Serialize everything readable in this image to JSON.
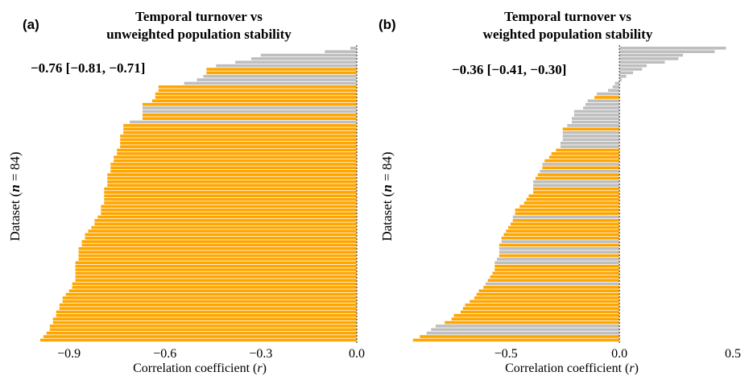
{
  "colors": {
    "significant": "#FFA500",
    "nonsignificant": "#BEBEBE",
    "text": "#000000",
    "zero_line": "#555555"
  },
  "y_label": {
    "prefix": "Dataset (",
    "n_symbol": "n",
    "suffix": " = 84)"
  },
  "x_label": {
    "prefix": "Correlation coefficient (",
    "r_symbol": "r",
    "suffix": ")"
  },
  "chart_data": [
    {
      "type": "bar",
      "orientation": "horizontal",
      "panel_label": "(a)",
      "title": [
        "Temporal turnover vs",
        "unweighted population stability"
      ],
      "annotation": "−0.76 [−0.81, −0.71]",
      "xlabel": "Correlation coefficient (r)",
      "ylabel": "Dataset (n = 84)",
      "xlim": [
        -1.02,
        0.0
      ],
      "xticks": [
        -0.9,
        -0.6,
        -0.3,
        0.0
      ],
      "xtick_labels": [
        "−0.9",
        "−0.6",
        "−0.3",
        "0.0"
      ],
      "legend": "none",
      "values": [
        -0.02,
        -0.1,
        -0.3,
        -0.33,
        -0.38,
        -0.44,
        -0.47,
        -0.47,
        -0.48,
        -0.5,
        -0.54,
        -0.62,
        -0.62,
        -0.63,
        -0.63,
        -0.64,
        -0.67,
        -0.67,
        -0.67,
        -0.67,
        -0.67,
        -0.71,
        -0.73,
        -0.73,
        -0.73,
        -0.74,
        -0.74,
        -0.74,
        -0.74,
        -0.75,
        -0.75,
        -0.76,
        -0.76,
        -0.77,
        -0.77,
        -0.77,
        -0.78,
        -0.78,
        -0.78,
        -0.78,
        -0.79,
        -0.79,
        -0.79,
        -0.79,
        -0.79,
        -0.8,
        -0.8,
        -0.8,
        -0.81,
        -0.82,
        -0.82,
        -0.83,
        -0.84,
        -0.85,
        -0.85,
        -0.86,
        -0.86,
        -0.87,
        -0.87,
        -0.87,
        -0.87,
        -0.88,
        -0.88,
        -0.88,
        -0.88,
        -0.88,
        -0.88,
        -0.89,
        -0.89,
        -0.9,
        -0.91,
        -0.92,
        -0.92,
        -0.93,
        -0.93,
        -0.94,
        -0.94,
        -0.95,
        -0.95,
        -0.96,
        -0.96,
        -0.97,
        -0.98,
        -0.99
      ],
      "significant": [
        false,
        false,
        false,
        false,
        false,
        false,
        true,
        true,
        false,
        false,
        false,
        true,
        true,
        true,
        true,
        true,
        true,
        false,
        false,
        true,
        true,
        false,
        true,
        true,
        true,
        true,
        true,
        true,
        true,
        true,
        true,
        true,
        true,
        true,
        true,
        true,
        true,
        true,
        true,
        true,
        true,
        true,
        true,
        true,
        true,
        true,
        true,
        true,
        true,
        true,
        true,
        true,
        true,
        true,
        true,
        true,
        true,
        true,
        true,
        true,
        true,
        true,
        true,
        true,
        true,
        true,
        true,
        true,
        true,
        true,
        true,
        true,
        true,
        true,
        true,
        true,
        true,
        true,
        true,
        true,
        true,
        true,
        true,
        true
      ]
    },
    {
      "type": "bar",
      "orientation": "horizontal",
      "panel_label": "(b)",
      "title": [
        "Temporal turnover vs",
        "weighted population stability"
      ],
      "annotation": "−0.36 [−0.41, −0.30]",
      "xlabel": "Correlation coefficient (r)",
      "ylabel": "Dataset (n = 84)",
      "xlim": [
        -0.92,
        0.5
      ],
      "xticks": [
        -0.5,
        0.0,
        0.5
      ],
      "xtick_labels": [
        "−0.5",
        "0.0",
        "0.5"
      ],
      "legend": "none",
      "values": [
        0.47,
        0.42,
        0.28,
        0.26,
        0.2,
        0.12,
        0.1,
        0.06,
        0.03,
        0.01,
        -0.02,
        -0.03,
        -0.05,
        -0.1,
        -0.11,
        -0.14,
        -0.15,
        -0.16,
        -0.2,
        -0.2,
        -0.21,
        -0.21,
        -0.23,
        -0.25,
        -0.25,
        -0.25,
        -0.25,
        -0.26,
        -0.26,
        -0.28,
        -0.3,
        -0.31,
        -0.33,
        -0.34,
        -0.34,
        -0.35,
        -0.36,
        -0.37,
        -0.38,
        -0.38,
        -0.38,
        -0.38,
        -0.4,
        -0.41,
        -0.42,
        -0.44,
        -0.46,
        -0.46,
        -0.47,
        -0.47,
        -0.48,
        -0.49,
        -0.5,
        -0.51,
        -0.52,
        -0.52,
        -0.53,
        -0.53,
        -0.53,
        -0.53,
        -0.54,
        -0.55,
        -0.55,
        -0.55,
        -0.56,
        -0.57,
        -0.58,
        -0.59,
        -0.6,
        -0.62,
        -0.63,
        -0.64,
        -0.66,
        -0.68,
        -0.69,
        -0.7,
        -0.73,
        -0.74,
        -0.77,
        -0.81,
        -0.83,
        -0.85,
        -0.88,
        -0.91
      ],
      "significant": [
        false,
        false,
        false,
        false,
        false,
        false,
        false,
        false,
        false,
        false,
        false,
        false,
        false,
        false,
        true,
        false,
        false,
        false,
        false,
        false,
        false,
        false,
        false,
        true,
        false,
        false,
        false,
        false,
        false,
        true,
        true,
        true,
        true,
        false,
        true,
        false,
        true,
        true,
        false,
        false,
        true,
        true,
        true,
        true,
        true,
        true,
        true,
        true,
        false,
        true,
        true,
        true,
        true,
        true,
        true,
        false,
        true,
        false,
        false,
        true,
        false,
        false,
        true,
        true,
        true,
        true,
        true,
        false,
        true,
        true,
        true,
        true,
        true,
        true,
        true,
        true,
        true,
        true,
        true,
        false,
        false,
        false,
        true,
        true
      ]
    }
  ]
}
